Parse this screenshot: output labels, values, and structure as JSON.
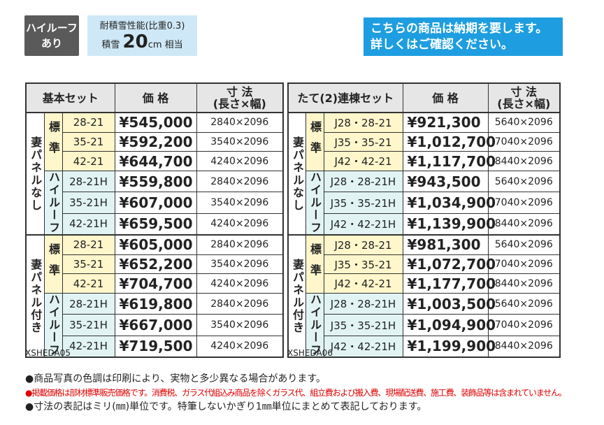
{
  "badge": {
    "line1": "ハイルーフ",
    "line2": "あり"
  },
  "snow": {
    "title": "耐積雪性能(比重0.3)",
    "prefix": "積雪",
    "value": "20",
    "unit": "cm",
    "suffix": "相当"
  },
  "notice": {
    "lines": [
      "こちらの商品は納期を要します。",
      "詳しくはご確認ください。"
    ]
  },
  "tables": [
    {
      "header": {
        "set": "基本セット",
        "price": "価 格",
        "dim": "寸 法",
        "dim_sub": "(長さ×幅)"
      },
      "code": "XSHEDA05",
      "groups": [
        {
          "label": "妻パネルなし",
          "subgroups": [
            {
              "label": "標準",
              "rows": [
                {
                  "size": "28-21",
                  "price": "¥545,000",
                  "dim": "2840×2096"
                },
                {
                  "size": "35-21",
                  "price": "¥592,200",
                  "dim": "3540×2096"
                },
                {
                  "size": "42-21",
                  "price": "¥644,700",
                  "dim": "4240×2096"
                }
              ]
            },
            {
              "label": "ハイルーフ",
              "rows": [
                {
                  "size": "28-21H",
                  "price": "¥559,800",
                  "dim": "2840×2096"
                },
                {
                  "size": "35-21H",
                  "price": "¥607,000",
                  "dim": "3540×2096"
                },
                {
                  "size": "42-21H",
                  "price": "¥659,500",
                  "dim": "4240×2096"
                }
              ]
            }
          ]
        },
        {
          "label": "妻パネル付き",
          "subgroups": [
            {
              "label": "標準",
              "rows": [
                {
                  "size": "28-21",
                  "price": "¥605,000",
                  "dim": "2840×2096"
                },
                {
                  "size": "35-21",
                  "price": "¥652,200",
                  "dim": "3540×2096"
                },
                {
                  "size": "42-21",
                  "price": "¥704,700",
                  "dim": "4240×2096"
                }
              ]
            },
            {
              "label": "ハイルーフ",
              "rows": [
                {
                  "size": "28-21H",
                  "price": "¥619,800",
                  "dim": "2840×2096"
                },
                {
                  "size": "35-21H",
                  "price": "¥667,000",
                  "dim": "3540×2096"
                },
                {
                  "size": "42-21H",
                  "price": "¥719,500",
                  "dim": "4240×2096"
                }
              ]
            }
          ]
        }
      ]
    },
    {
      "header": {
        "set": "たて(2)連棟セット",
        "price": "価 格",
        "dim": "寸 法",
        "dim_sub": "(長さ×幅)"
      },
      "code": "XSHEDA06",
      "groups": [
        {
          "label": "妻パネルなし",
          "subgroups": [
            {
              "label": "標準",
              "rows": [
                {
                  "size": "J28・28-21",
                  "price": "¥921,300",
                  "dim": "5640×2096"
                },
                {
                  "size": "J35・35-21",
                  "price": "¥1,012,700",
                  "dim": "7040×2096"
                },
                {
                  "size": "J42・42-21",
                  "price": "¥1,117,700",
                  "dim": "8440×2096"
                }
              ]
            },
            {
              "label": "ハイルーフ",
              "rows": [
                {
                  "size": "J28・28-21H",
                  "price": "¥943,500",
                  "dim": "5640×2096"
                },
                {
                  "size": "J35・35-21H",
                  "price": "¥1,034,900",
                  "dim": "7040×2096"
                },
                {
                  "size": "J42・42-21H",
                  "price": "¥1,139,900",
                  "dim": "8440×2096"
                }
              ]
            }
          ]
        },
        {
          "label": "妻パネル付き",
          "subgroups": [
            {
              "label": "標準",
              "rows": [
                {
                  "size": "J28・28-21",
                  "price": "¥981,300",
                  "dim": "5640×2096"
                },
                {
                  "size": "J35・35-21",
                  "price": "¥1,072,700",
                  "dim": "7040×2096"
                },
                {
                  "size": "J42・42-21",
                  "price": "¥1,177,700",
                  "dim": "8440×2096"
                }
              ]
            },
            {
              "label": "ハイルーフ",
              "rows": [
                {
                  "size": "J28・28-21H",
                  "price": "¥1,003,500",
                  "dim": "5640×2096"
                },
                {
                  "size": "J35・35-21H",
                  "price": "¥1,094,900",
                  "dim": "7040×2096"
                },
                {
                  "size": "J42・42-21H",
                  "price": "¥1,199,900",
                  "dim": "8440×2096"
                }
              ]
            }
          ]
        }
      ]
    }
  ],
  "notes": [
    "●商品写真の色調は印刷により、実物と多少異なる場合があります。",
    "●掲載価格は部材標準販売価格です。消費税、ガラス代組込み商品を除くガラス代、組立費および搬入費、現場配送費、施工費、装飾品等は含まれていません。",
    "●寸法の表記はミリ(㎜)単位です。特筆しないかぎり1㎜単位にまとめて表記しております。"
  ]
}
